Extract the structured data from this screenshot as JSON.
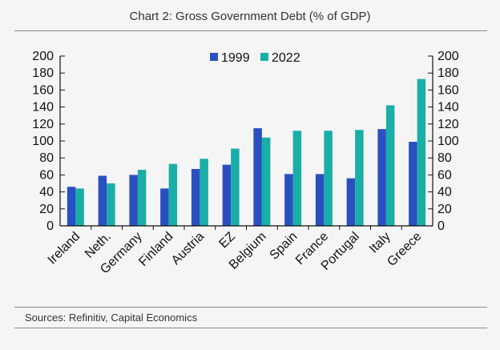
{
  "title": "Chart 2: Gross Government Debt (% of GDP)",
  "source": "Sources: Refinitiv, Capital Economics",
  "chart_data": {
    "type": "bar",
    "title": "Chart 2: Gross Government Debt (% of GDP)",
    "categories": [
      "Ireland",
      "Neth.",
      "Germany",
      "Finland",
      "Austria",
      "EZ",
      "Belgium",
      "Spain",
      "France",
      "Portugal",
      "Italy",
      "Greece"
    ],
    "series": [
      {
        "name": "1999",
        "color": "#2a4fc0",
        "values": [
          46,
          59,
          60,
          44,
          67,
          72,
          115,
          61,
          61,
          56,
          114,
          99
        ]
      },
      {
        "name": "2022",
        "color": "#1aaea8",
        "values": [
          44,
          50,
          66,
          73,
          79,
          91,
          104,
          112,
          112,
          113,
          142,
          173
        ]
      }
    ],
    "ylim": [
      0,
      200
    ],
    "yticks": [
      0,
      20,
      40,
      60,
      80,
      100,
      120,
      140,
      160,
      180,
      200
    ],
    "secondary_axis": true,
    "grid": false,
    "legend_position": "top-center"
  }
}
